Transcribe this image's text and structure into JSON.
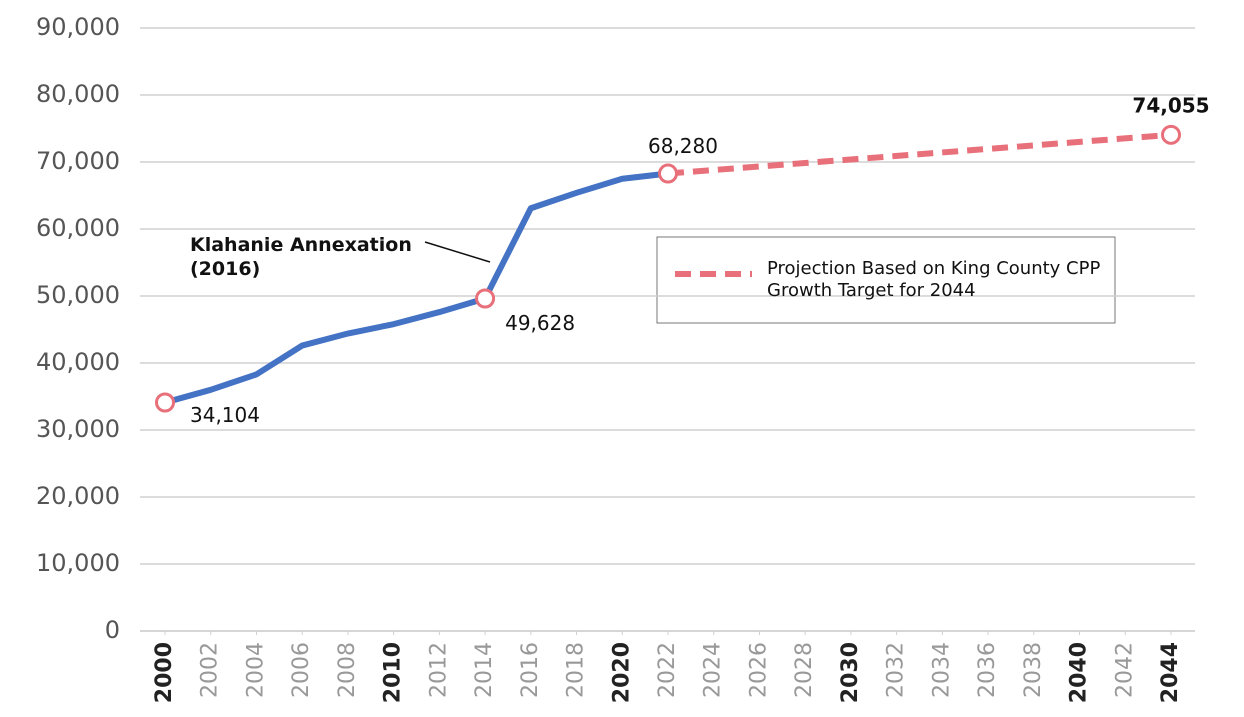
{
  "chart_data": {
    "type": "line",
    "ylim": [
      0,
      90000
    ],
    "yticks": [
      0,
      {
        "value": 10000,
        "label": "10,000"
      },
      {
        "value": 20000,
        "label": "20,000"
      },
      {
        "value": 30000,
        "label": "30,000"
      },
      {
        "value": 40000,
        "label": "40,000"
      },
      {
        "value": 50000,
        "label": "50,000"
      },
      {
        "value": 60000,
        "label": "60,000"
      },
      {
        "value": 70000,
        "label": "70,000"
      },
      {
        "value": 80000,
        "label": "80,000"
      },
      {
        "value": 90000,
        "label": "90,000"
      }
    ],
    "xlim": [
      2000,
      2044
    ],
    "xticks": [
      2000,
      2002,
      2004,
      2006,
      2008,
      2010,
      2012,
      2014,
      2016,
      2018,
      2020,
      2022,
      2024,
      2026,
      2028,
      2030,
      2032,
      2034,
      2036,
      2038,
      2040,
      2042,
      2044
    ],
    "grid": true,
    "series": [
      {
        "color": "#4472c4",
        "style": "solid",
        "x": [
          2000,
          2002,
          2004,
          2006,
          2008,
          2010,
          2012,
          2014,
          2016,
          2018,
          2020,
          2022
        ],
        "values": [
          34104,
          36000,
          38300,
          42600,
          44400,
          45800,
          47600,
          49628,
          63100,
          65400,
          67500,
          68280
        ],
        "value_labels": [
          "34,104",
          null,
          null,
          null,
          null,
          null,
          null,
          "49,628",
          null,
          null,
          null,
          "68,280"
        ]
      },
      {
        "name": "Projection Based on King County CPP Growth Target for 2044",
        "color": "#e8707a",
        "style": "dashed",
        "x": [
          2022,
          2044
        ],
        "values": [
          68280,
          74055
        ],
        "value_labels": [
          null,
          "74,055"
        ]
      }
    ],
    "annotations": [
      {
        "text": "Klahanie Annexation (2016)"
      }
    ]
  }
}
